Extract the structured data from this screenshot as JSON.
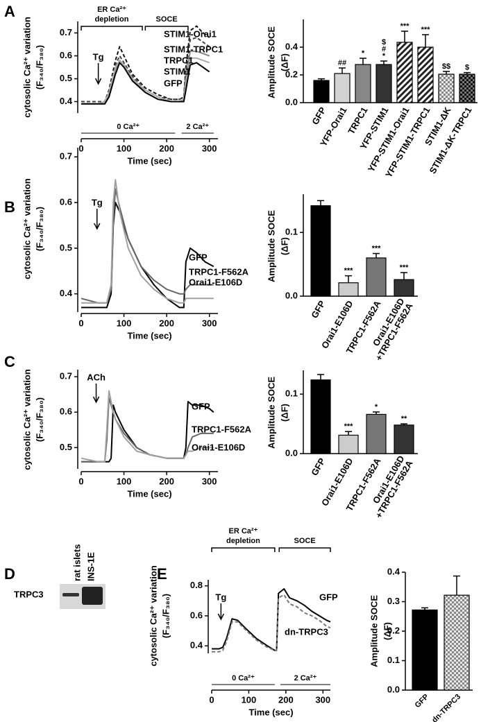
{
  "chart_data": [
    {
      "type": "line",
      "panel": "A",
      "y_label": [
        "cytosolic Ca²⁺ variation",
        "(F₃₄₀/F₃₈₀)"
      ],
      "x_label": "Time (sec)",
      "xlim": [
        0,
        320
      ],
      "xticks": [
        0,
        100,
        200,
        300
      ],
      "ylim": [
        0.35,
        0.75
      ],
      "yticks": [
        0.4,
        0.5,
        0.6,
        0.7
      ],
      "x": [
        0,
        40,
        55,
        65,
        80,
        90,
        100,
        120,
        150,
        180,
        210,
        230,
        240,
        245,
        255,
        270,
        285,
        300
      ],
      "series": [
        {
          "name": "STIM1-Orai1",
          "color": "#111111",
          "dash": true,
          "values": [
            0.4,
            0.4,
            0.4,
            0.45,
            0.58,
            0.64,
            0.6,
            0.52,
            0.46,
            0.43,
            0.41,
            0.41,
            0.42,
            0.55,
            0.71,
            0.73,
            0.7,
            0.68
          ]
        },
        {
          "name": "STIM1-TRPC1",
          "color": "#444444",
          "dash": true,
          "values": [
            0.4,
            0.4,
            0.4,
            0.44,
            0.56,
            0.6,
            0.57,
            0.51,
            0.45,
            0.42,
            0.41,
            0.41,
            0.42,
            0.53,
            0.67,
            0.68,
            0.66,
            0.64
          ]
        },
        {
          "name": "TRPC1",
          "color": "#888888",
          "dash": false,
          "values": [
            0.39,
            0.39,
            0.39,
            0.43,
            0.54,
            0.58,
            0.56,
            0.5,
            0.44,
            0.41,
            0.4,
            0.4,
            0.41,
            0.5,
            0.62,
            0.62,
            0.61,
            0.6
          ]
        },
        {
          "name": "STIM1",
          "color": "#aaaaaa",
          "dash": false,
          "values": [
            0.39,
            0.39,
            0.4,
            0.44,
            0.55,
            0.58,
            0.56,
            0.5,
            0.45,
            0.42,
            0.4,
            0.4,
            0.41,
            0.48,
            0.59,
            0.59,
            0.58,
            0.57
          ]
        },
        {
          "name": "GFP",
          "color": "#000000",
          "dash": false,
          "values": [
            0.39,
            0.39,
            0.39,
            0.42,
            0.52,
            0.57,
            0.55,
            0.49,
            0.44,
            0.41,
            0.4,
            0.4,
            0.4,
            0.45,
            0.56,
            0.57,
            0.55,
            0.53
          ]
        }
      ],
      "stimulus": {
        "label": "Tg",
        "x": 40
      },
      "phases": [
        {
          "label": [
            "ER Ca²⁺",
            "depletion"
          ],
          "range": [
            0,
            143
          ]
        },
        {
          "label": "SOCE",
          "range": [
            150,
            250
          ]
        }
      ],
      "solutions": [
        {
          "label": "0 Ca²⁺",
          "range": [
            0,
            220
          ]
        },
        {
          "label": "2 Ca²⁺",
          "range": [
            235,
            310
          ]
        }
      ]
    },
    {
      "type": "bar",
      "y_label": [
        "Amplitude SOCE",
        "(ΔF)"
      ],
      "categories": [
        "GFP",
        "YFP-Orai1",
        "TRPC1",
        "YFP-STIM1",
        "YFP-STIM1-Orai1",
        "YFP-STIM1-TRPC1",
        "STIM1-ΔK",
        "STIM1-ΔK-TRPC1"
      ],
      "values": [
        0.16,
        0.21,
        0.275,
        0.275,
        0.435,
        0.4,
        0.205,
        0.205
      ],
      "errors": [
        0.012,
        0.04,
        0.045,
        0.025,
        0.08,
        0.09,
        0.02,
        0.012
      ],
      "significance": [
        null,
        [
          "##"
        ],
        [
          "*"
        ],
        [
          "$",
          "#",
          "*"
        ],
        [
          "***"
        ],
        [
          "***"
        ],
        [
          "$$"
        ],
        [
          "$"
        ]
      ],
      "colors": [
        "#000000",
        "#d3d3d3",
        "#888888",
        "#333333",
        "hatch",
        "hatch",
        "check-light",
        "check-dark"
      ],
      "ylim": [
        0,
        0.6
      ],
      "yticks": [
        {
          "value": 0,
          "label": "0.0"
        },
        0.2,
        0.4
      ]
    },
    {
      "type": "line",
      "panel": "B",
      "y_label": [
        "cytosolic Ca²⁺ variation",
        "(F₃₄₀/F₃₈₀)"
      ],
      "x_label": "Time (sec)",
      "xlim": [
        0,
        320
      ],
      "xticks": [
        0,
        100,
        200,
        300
      ],
      "ylim": [
        0.36,
        0.72
      ],
      "yticks": [
        0.4,
        0.5,
        0.6,
        0.7
      ],
      "x": [
        0,
        40,
        60,
        70,
        75,
        80,
        90,
        110,
        140,
        170,
        200,
        230,
        240,
        245,
        255,
        270,
        290,
        310
      ],
      "series": [
        {
          "name": "GFP",
          "color": "#000000",
          "dash": false,
          "values": [
            0.37,
            0.37,
            0.37,
            0.4,
            0.55,
            0.6,
            0.58,
            0.52,
            0.46,
            0.42,
            0.39,
            0.37,
            0.37,
            0.47,
            0.5,
            0.49,
            0.47,
            0.46
          ]
        },
        {
          "name": "TRPC1-F562A",
          "color": "#666666",
          "dash": false,
          "values": [
            0.39,
            0.38,
            0.38,
            0.41,
            0.56,
            0.63,
            0.59,
            0.52,
            0.46,
            0.43,
            0.41,
            0.4,
            0.4,
            0.41,
            0.42,
            0.42,
            0.42,
            0.42
          ]
        },
        {
          "name": "Orai1-E106D",
          "color": "#a0a0a0",
          "dash": false,
          "values": [
            0.38,
            0.38,
            0.38,
            0.42,
            0.6,
            0.65,
            0.58,
            0.5,
            0.44,
            0.41,
            0.39,
            0.38,
            0.38,
            0.39,
            0.39,
            0.39,
            0.39,
            0.39
          ]
        }
      ],
      "stimulus": {
        "label": "Tg",
        "x": 37
      }
    },
    {
      "type": "bar",
      "y_label": [
        "Amplitude SOCE",
        "(ΔF)"
      ],
      "categories": [
        "GFP",
        "Orai1-E106D",
        "TRPC1-F562A",
        [
          "Orai1-E106D",
          "+TRPC1-F562A"
        ]
      ],
      "values": [
        0.142,
        0.021,
        0.06,
        0.026
      ],
      "errors": [
        0.008,
        0.011,
        0.007,
        0.011
      ],
      "significance": [
        null,
        [
          "***"
        ],
        [
          "***"
        ],
        [
          "***"
        ]
      ],
      "colors": [
        "#000000",
        "#cccccc",
        "#777777",
        "#333333"
      ],
      "ylim": [
        0,
        0.16
      ],
      "yticks": [
        {
          "value": 0,
          "label": "0.0"
        },
        0.1
      ]
    },
    {
      "type": "line",
      "panel": "C",
      "y_label": [
        "cytosolic Ca²⁺ variation",
        "(F₃₄₀/F₃₈₀)"
      ],
      "x_label": "Time (sec)",
      "xlim": [
        0,
        320
      ],
      "xticks": [
        0,
        100,
        200,
        300
      ],
      "ylim": [
        0.44,
        0.72
      ],
      "yticks": [
        0.5,
        0.6,
        0.7
      ],
      "x": [
        0,
        40,
        55,
        60,
        65,
        70,
        75,
        80,
        100,
        130,
        160,
        200,
        240,
        245,
        250,
        260,
        280,
        300,
        310
      ],
      "series": [
        {
          "name": "GFP",
          "color": "#000000",
          "dash": false,
          "values": [
            0.46,
            0.46,
            0.46,
            0.46,
            0.46,
            0.47,
            0.62,
            0.6,
            0.55,
            0.5,
            0.48,
            0.47,
            0.47,
            0.5,
            0.63,
            0.62,
            0.62,
            0.61,
            0.6
          ]
        },
        {
          "name": "TRPC1-F562A",
          "color": "#666666",
          "dash": false,
          "values": [
            0.46,
            0.46,
            0.46,
            0.52,
            0.64,
            0.62,
            0.6,
            0.58,
            0.54,
            0.5,
            0.48,
            0.47,
            0.47,
            0.48,
            0.5,
            0.53,
            0.54,
            0.54,
            0.54
          ]
        },
        {
          "name": "Orai1-E106D",
          "color": "#a0a0a0",
          "dash": false,
          "values": [
            0.47,
            0.46,
            0.46,
            0.55,
            0.66,
            0.63,
            0.6,
            0.58,
            0.53,
            0.49,
            0.48,
            0.47,
            0.47,
            0.48,
            0.49,
            0.49,
            0.5,
            0.5,
            0.5
          ]
        }
      ],
      "stimulus": {
        "label": "ACh",
        "x": 35
      }
    },
    {
      "type": "bar",
      "y_label": [
        "Amplitude SOCE",
        "(ΔF)"
      ],
      "categories": [
        "GFP",
        "Orai1-E106D",
        "TRPC1-F562A",
        [
          "Orai1-E106D",
          "+TRPC1-F562A"
        ]
      ],
      "values": [
        0.124,
        0.031,
        0.066,
        0.048
      ],
      "errors": [
        0.009,
        0.006,
        0.004,
        0.002
      ],
      "significance": [
        null,
        [
          "***"
        ],
        [
          "*"
        ],
        [
          "**"
        ]
      ],
      "colors": [
        "#000000",
        "#cccccc",
        "#777777",
        "#333333"
      ],
      "ylim": [
        0,
        0.14
      ],
      "yticks": [
        {
          "value": 0,
          "label": "0.0"
        },
        0.1
      ]
    },
    {
      "type": "line",
      "panel": "E",
      "y_label": [
        "cytosolic Ca²⁺ variation",
        "(F₃₄₀/F₃₈₀)"
      ],
      "x_label": "Time (sec)",
      "xlim": [
        0,
        320
      ],
      "xticks": [
        0,
        100,
        200,
        300
      ],
      "ylim": [
        0.35,
        0.84
      ],
      "yticks": [
        0.4,
        0.6,
        0.8
      ],
      "x": [
        0,
        20,
        30,
        40,
        55,
        70,
        90,
        120,
        150,
        170,
        175,
        180,
        195,
        210,
        230,
        250,
        270,
        290,
        310,
        320
      ],
      "series": [
        {
          "name": "GFP",
          "color": "#000000",
          "dash": false,
          "values": [
            0.38,
            0.38,
            0.39,
            0.45,
            0.58,
            0.57,
            0.52,
            0.45,
            0.4,
            0.37,
            0.37,
            0.75,
            0.78,
            0.72,
            0.7,
            0.67,
            0.63,
            0.6,
            0.57,
            0.56
          ]
        },
        {
          "name": "dn-TRPC3",
          "color": "#777777",
          "dash": true,
          "values": [
            0.36,
            0.36,
            0.37,
            0.43,
            0.56,
            0.56,
            0.51,
            0.44,
            0.39,
            0.37,
            0.37,
            0.72,
            0.74,
            0.68,
            0.66,
            0.62,
            0.6,
            0.57,
            0.53,
            0.52
          ]
        }
      ],
      "stimulus": {
        "label": "Tg",
        "x": 25
      },
      "phases": [
        {
          "label": [
            "ER Ca²⁺",
            "depletion"
          ],
          "range": [
            0,
            170
          ]
        },
        {
          "label": "SOCE",
          "range": [
            182,
            320
          ]
        }
      ],
      "solutions": [
        {
          "label": "0 Ca²⁺",
          "range": [
            0,
            170
          ]
        },
        {
          "label": "2 Ca²⁺",
          "range": [
            185,
            320
          ]
        }
      ]
    },
    {
      "type": "bar",
      "y_label": [
        "Amplitude SOCE",
        "(ΔF)"
      ],
      "categories": [
        "GFP",
        "dn-TRPC3"
      ],
      "values": [
        0.272,
        0.322
      ],
      "errors": [
        0.007,
        0.065
      ],
      "significance": [
        null,
        null
      ],
      "colors": [
        "#000000",
        "check-light"
      ],
      "ylim": [
        0,
        0.4
      ],
      "yticks": [
        {
          "value": 0,
          "label": "0.0"
        },
        0.1,
        0.2,
        0.3,
        0.4
      ]
    }
  ],
  "blot": {
    "panel": "D",
    "lanes": [
      "rat islets",
      "INS-1E"
    ],
    "protein": "TRPC3"
  }
}
